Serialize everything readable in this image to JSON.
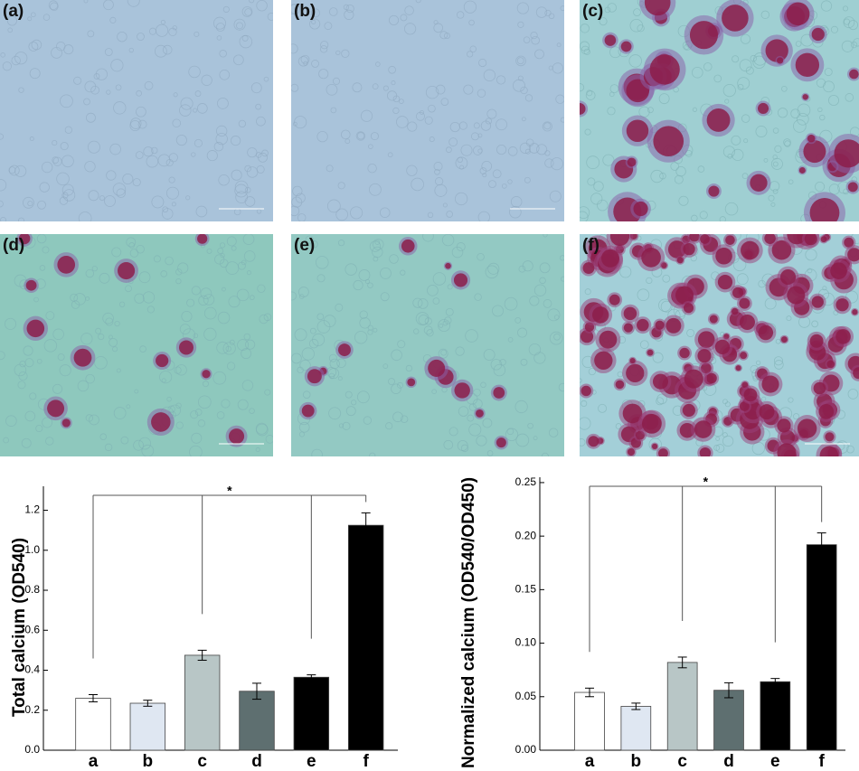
{
  "panels": [
    {
      "label": "(a)"
    },
    {
      "label": "(b)"
    },
    {
      "label": "(c)"
    },
    {
      "label": "(d)"
    },
    {
      "label": "(e)"
    },
    {
      "label": "(f)"
    }
  ],
  "chart_data": [
    {
      "type": "bar",
      "ylabel": "Total calcium (OD540)",
      "annotation": "*",
      "categories": [
        "a",
        "b",
        "c",
        "d",
        "e",
        "f"
      ],
      "values": [
        0.26,
        0.235,
        0.475,
        0.295,
        0.365,
        1.125
      ],
      "errors": [
        0.018,
        0.015,
        0.025,
        0.04,
        0.012,
        0.062
      ],
      "colors": [
        "#ffffff",
        "#dfe7f2",
        "#b8c6c6",
        "#5e6f70",
        "#000000",
        "#000000"
      ],
      "ylim": [
        0,
        1.32
      ],
      "yticks": [
        {
          "value": 0,
          "label": "0.0"
        },
        0.2,
        0.4,
        0.6,
        0.8,
        {
          "value": 1,
          "label": "1.0"
        },
        1.2
      ]
    },
    {
      "type": "bar",
      "ylabel": "Normalized calcium (OD540/OD450)",
      "annotation": "*",
      "categories": [
        "a",
        "b",
        "c",
        "d",
        "e",
        "f"
      ],
      "values": [
        0.054,
        0.041,
        0.082,
        0.056,
        0.064,
        0.192
      ],
      "errors": [
        0.004,
        0.003,
        0.005,
        0.007,
        0.003,
        0.011
      ],
      "colors": [
        "#ffffff",
        "#dfe7f2",
        "#b8c6c6",
        "#5e6f70",
        "#000000",
        "#000000"
      ],
      "ylim": [
        0,
        0.255
      ],
      "yticks": [
        {
          "value": 0,
          "label": "0.00"
        },
        0.05,
        {
          "value": 0.1,
          "label": "0.10"
        },
        0.15,
        {
          "value": 0.2,
          "label": "0.20"
        },
        0.25
      ]
    }
  ]
}
